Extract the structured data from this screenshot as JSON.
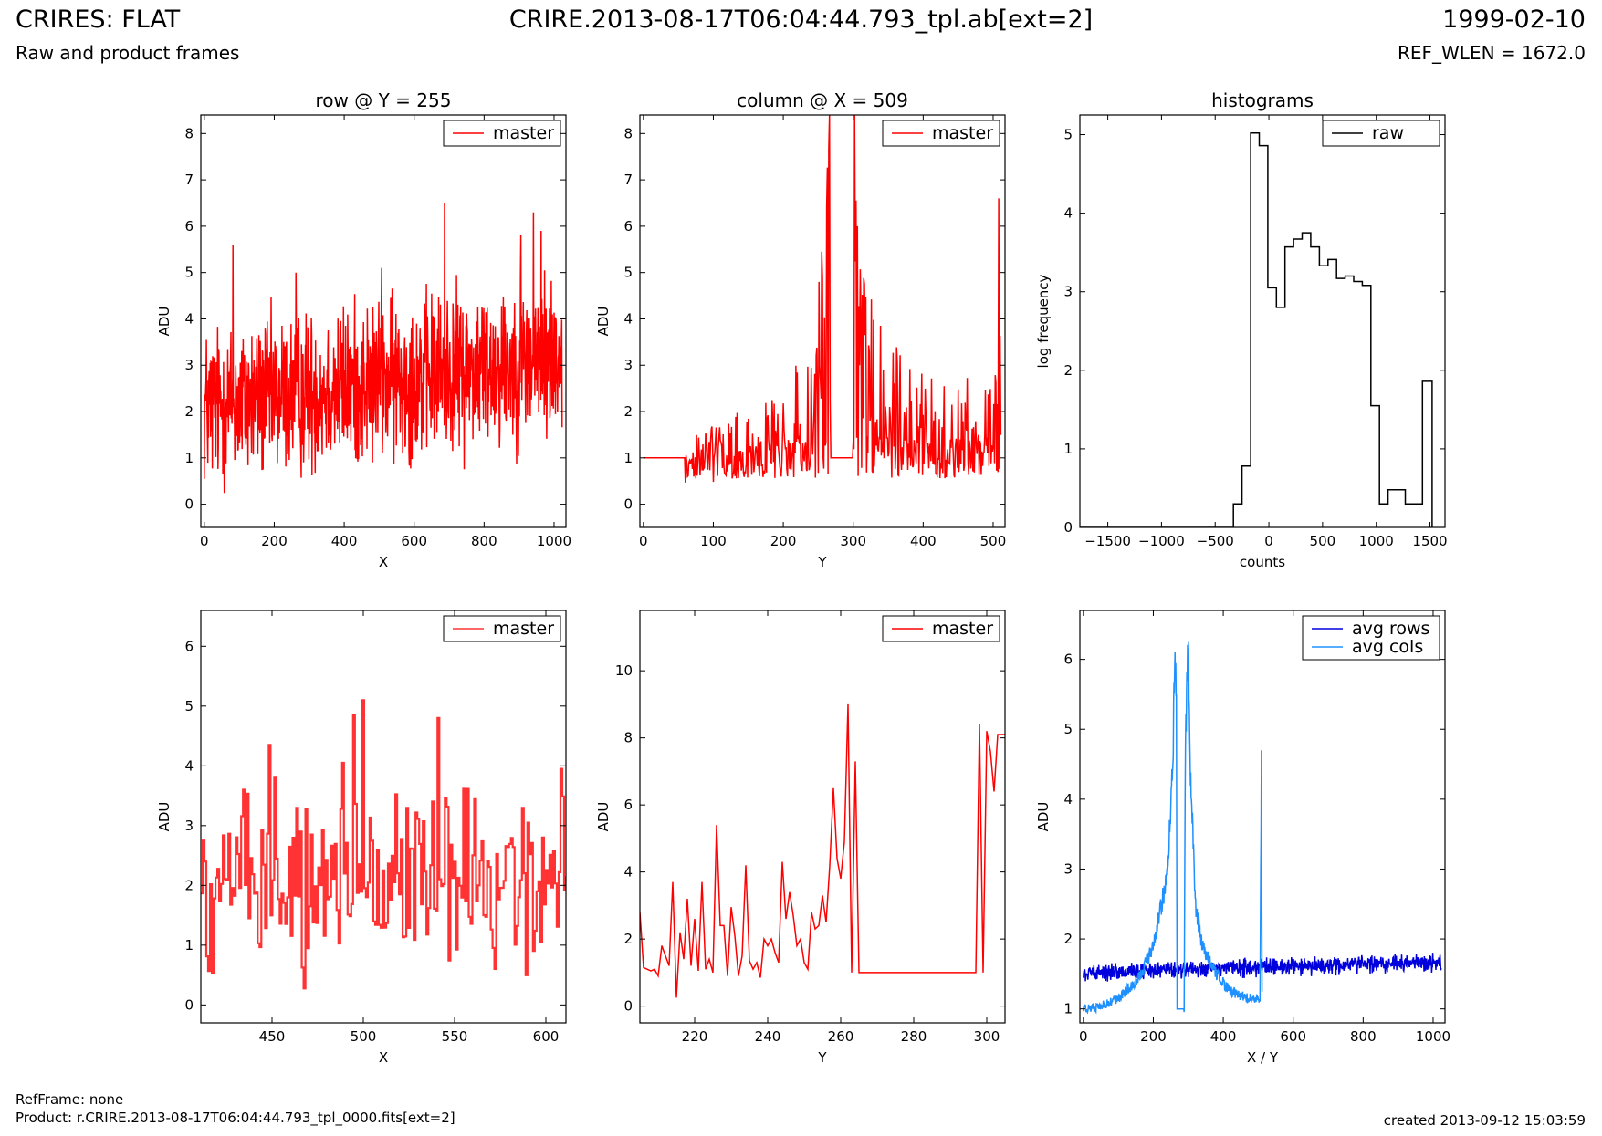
{
  "header": {
    "title": "CRIRES: FLAT",
    "subtitle": "Raw and product frames",
    "file": "CRIRE.2013-08-17T06:04:44.793_tpl.ab[ext=2]",
    "date": "1999-02-10",
    "ref_wlen": "REF_WLEN = 1672.0"
  },
  "footer": {
    "ref_frame": "RefFrame: none",
    "product": "Product: r.CRIRE.2013-08-17T06:04:44.793_tpl_0000.fits[ext=2]",
    "created": "created 2013-09-12 15:03:59"
  },
  "colors": {
    "master": "#ff0000",
    "master_zoom": "#ff3333",
    "raw": "#000000",
    "avg_rows": "#0000dd",
    "avg_cols": "#1e90ff"
  },
  "chart_data": [
    {
      "type": "line",
      "title": "row @ Y = 255",
      "xlabel": "X",
      "ylabel": "ADU",
      "xlim": [
        -10,
        1034
      ],
      "ylim": [
        -0.5,
        8.4
      ],
      "xticks": [
        0,
        200,
        400,
        600,
        800,
        1000
      ],
      "yticks": [
        0,
        1,
        2,
        3,
        4,
        5,
        6,
        7,
        8
      ],
      "legend": "top-right",
      "series": [
        {
          "name": "master",
          "color": "#ff0000",
          "style": "noise",
          "x_range": [
            0,
            1023
          ],
          "n": 1024,
          "baseline": [
            2.1,
            3.2
          ],
          "amplitude": 1.3,
          "min": 0.1,
          "max": 6.5,
          "peaks": [
            [
              82,
              5.6
            ],
            [
              687,
              6.5
            ],
            [
              941,
              6.3
            ],
            [
              905,
              5.8
            ],
            [
              963,
              5.9
            ],
            [
              262,
              5.0
            ],
            [
              507,
              5.1
            ]
          ]
        }
      ]
    },
    {
      "type": "line",
      "title": "column @ X = 509",
      "xlabel": "Y",
      "ylabel": "ADU",
      "xlim": [
        -5,
        517
      ],
      "ylim": [
        -0.5,
        8.4
      ],
      "xticks": [
        0,
        100,
        200,
        300,
        400,
        500
      ],
      "yticks": [
        0,
        1,
        2,
        3,
        4,
        5,
        6,
        7,
        8
      ],
      "legend": "top-right",
      "series": [
        {
          "name": "master",
          "color": "#ff0000",
          "style": "column",
          "x_range": [
            0,
            511
          ],
          "n": 512,
          "points": [
            [
              0,
              1.0
            ],
            [
              60,
              1.0
            ],
            [
              140,
              1.3
            ],
            [
              200,
              1.6
            ],
            [
              240,
              2.3
            ],
            [
              255,
              3.5
            ],
            [
              262,
              6.4
            ],
            [
              266,
              8.4
            ],
            [
              268,
              1.0
            ],
            [
              300,
              1.0
            ],
            [
              302,
              8.4
            ],
            [
              306,
              6.0
            ],
            [
              315,
              3.5
            ],
            [
              340,
              2.4
            ],
            [
              400,
              1.8
            ],
            [
              450,
              1.7
            ],
            [
              505,
              1.8
            ],
            [
              508,
              6.6
            ],
            [
              511,
              2.0
            ]
          ]
        }
      ]
    },
    {
      "type": "line",
      "title": "histograms",
      "xlabel": "counts",
      "ylabel": "log frequency",
      "xlim": [
        -1760,
        1640
      ],
      "ylim": [
        0,
        5.25
      ],
      "xticks": [
        -1500,
        -1000,
        -500,
        0,
        500,
        1000,
        1500
      ],
      "yticks": [
        0,
        1,
        2,
        3,
        4,
        5
      ],
      "legend": "top-right",
      "series": [
        {
          "name": "raw",
          "color": "#000000",
          "style": "step",
          "points": [
            [
              -1760,
              0
            ],
            [
              -330,
              0
            ],
            [
              -330,
              0.3
            ],
            [
              -250,
              0.3
            ],
            [
              -250,
              0.78
            ],
            [
              -170,
              0.78
            ],
            [
              -170,
              5.02
            ],
            [
              -90,
              5.02
            ],
            [
              -90,
              4.86
            ],
            [
              -10,
              4.86
            ],
            [
              -10,
              3.05
            ],
            [
              70,
              3.05
            ],
            [
              70,
              2.8
            ],
            [
              150,
              2.8
            ],
            [
              150,
              3.57
            ],
            [
              230,
              3.57
            ],
            [
              230,
              3.67
            ],
            [
              310,
              3.67
            ],
            [
              310,
              3.75
            ],
            [
              390,
              3.75
            ],
            [
              390,
              3.57
            ],
            [
              470,
              3.57
            ],
            [
              470,
              3.33
            ],
            [
              550,
              3.33
            ],
            [
              550,
              3.41
            ],
            [
              630,
              3.41
            ],
            [
              630,
              3.17
            ],
            [
              710,
              3.17
            ],
            [
              710,
              3.2
            ],
            [
              790,
              3.2
            ],
            [
              790,
              3.13
            ],
            [
              870,
              3.13
            ],
            [
              870,
              3.08
            ],
            [
              950,
              3.08
            ],
            [
              950,
              1.55
            ],
            [
              1030,
              1.55
            ],
            [
              1030,
              0.3
            ],
            [
              1110,
              0.3
            ],
            [
              1110,
              0.48
            ],
            [
              1270,
              0.48
            ],
            [
              1270,
              0.3
            ],
            [
              1430,
              0.3
            ],
            [
              1430,
              1.86
            ],
            [
              1520,
              1.86
            ],
            [
              1520,
              0
            ]
          ]
        }
      ]
    },
    {
      "type": "line",
      "xlabel": "X",
      "ylabel": "ADU",
      "xlim": [
        411,
        611
      ],
      "ylim": [
        -0.3,
        6.6
      ],
      "xticks": [
        450,
        500,
        550,
        600
      ],
      "yticks": [
        0,
        1,
        2,
        3,
        4,
        5,
        6
      ],
      "legend": "top-right",
      "series": [
        {
          "name": "master",
          "color": "#ff3333",
          "style": "noise-step",
          "x_range": [
            411,
            611
          ],
          "n": 200,
          "baseline": [
            2.1,
            2.2
          ],
          "amplitude": 1.1,
          "min": 0.2,
          "max": 5.1,
          "peaks": [
            [
              448,
              4.35
            ],
            [
              494,
              4.85
            ],
            [
              499,
              5.1
            ],
            [
              541,
              4.8
            ],
            [
              608,
              3.95
            ],
            [
              434,
              3.6
            ],
            [
              488,
              4.05
            ]
          ]
        }
      ]
    },
    {
      "type": "line",
      "xlabel": "Y",
      "ylabel": "ADU",
      "xlim": [
        205,
        305
      ],
      "ylim": [
        -0.5,
        11.8
      ],
      "xticks": [
        220,
        240,
        260,
        280,
        300
      ],
      "yticks": [
        0,
        2,
        4,
        6,
        8,
        10
      ],
      "legend": "top-right",
      "series": [
        {
          "name": "master",
          "color": "#ff0000",
          "style": "step",
          "points": [
            [
              205,
              2.8
            ],
            [
              206,
              1.15
            ],
            [
              208,
              1.05
            ],
            [
              209,
              1.1
            ],
            [
              210,
              0.9
            ],
            [
              211,
              1.8
            ],
            [
              212,
              1.5
            ],
            [
              213,
              1.2
            ],
            [
              214,
              3.7
            ],
            [
              215,
              0.25
            ],
            [
              216,
              2.2
            ],
            [
              217,
              1.4
            ],
            [
              218,
              3.2
            ],
            [
              219,
              1.2
            ],
            [
              220,
              2.6
            ],
            [
              221,
              1.05
            ],
            [
              222,
              3.7
            ],
            [
              223,
              1.1
            ],
            [
              224,
              1.4
            ],
            [
              225,
              1.0
            ],
            [
              226,
              5.4
            ],
            [
              227,
              2.4
            ],
            [
              228,
              2.4
            ],
            [
              229,
              0.9
            ],
            [
              230,
              2.95
            ],
            [
              231,
              2.1
            ],
            [
              232,
              0.9
            ],
            [
              233,
              1.5
            ],
            [
              234,
              4.2
            ],
            [
              235,
              1.35
            ],
            [
              236,
              1.1
            ],
            [
              237,
              1.3
            ],
            [
              238,
              0.85
            ],
            [
              239,
              2.0
            ],
            [
              240,
              1.8
            ],
            [
              241,
              2.0
            ],
            [
              242,
              1.6
            ],
            [
              243,
              1.3
            ],
            [
              244,
              4.3
            ],
            [
              245,
              2.6
            ],
            [
              246,
              3.4
            ],
            [
              247,
              2.7
            ],
            [
              248,
              1.8
            ],
            [
              249,
              2.0
            ],
            [
              250,
              1.3
            ],
            [
              251,
              1.1
            ],
            [
              252,
              2.8
            ],
            [
              253,
              2.3
            ],
            [
              254,
              2.4
            ],
            [
              255,
              3.3
            ],
            [
              256,
              2.5
            ],
            [
              257,
              4.2
            ],
            [
              258,
              6.5
            ],
            [
              259,
              4.4
            ],
            [
              260,
              3.8
            ],
            [
              261,
              4.9
            ],
            [
              262,
              9.0
            ],
            [
              263,
              1.0
            ],
            [
              264,
              7.3
            ],
            [
              265,
              1.0
            ],
            [
              297,
              1.0
            ],
            [
              298,
              8.4
            ],
            [
              299,
              1.0
            ],
            [
              300,
              8.2
            ],
            [
              301,
              7.6
            ],
            [
              302,
              6.4
            ],
            [
              303,
              8.1
            ],
            [
              305,
              8.1
            ]
          ]
        }
      ]
    },
    {
      "type": "line",
      "xlabel": "X / Y",
      "ylabel": "ADU",
      "xlim": [
        -10,
        1034
      ],
      "ylim": [
        0.8,
        6.7
      ],
      "xticks": [
        0,
        200,
        400,
        600,
        800,
        1000
      ],
      "yticks": [
        1,
        2,
        3,
        4,
        5,
        6
      ],
      "legend": "top-right",
      "series": [
        {
          "name": "avg rows",
          "color": "#0000dd",
          "style": "rows",
          "x_range": [
            0,
            1023
          ],
          "n": 1024,
          "baseline": [
            1.52,
            1.67
          ],
          "amplitude": 0.09,
          "min": 1.35,
          "max": 1.9
        },
        {
          "name": "avg cols",
          "color": "#1e90ff",
          "style": "cols",
          "x_range": [
            0,
            511
          ],
          "n": 512,
          "points": [
            [
              0,
              1.0
            ],
            [
              40,
              1.02
            ],
            [
              100,
              1.15
            ],
            [
              160,
              1.45
            ],
            [
              200,
              1.9
            ],
            [
              240,
              2.9
            ],
            [
              255,
              4.4
            ],
            [
              262,
              6.1
            ],
            [
              266,
              5.5
            ],
            [
              268,
              1.0
            ],
            [
              288,
              1.0
            ],
            [
              292,
              4.8
            ],
            [
              300,
              6.25
            ],
            [
              305,
              4.6
            ],
            [
              320,
              2.5
            ],
            [
              340,
              1.9
            ],
            [
              380,
              1.5
            ],
            [
              420,
              1.25
            ],
            [
              470,
              1.15
            ],
            [
              505,
              1.15
            ],
            [
              509,
              4.7
            ],
            [
              511,
              1.2
            ]
          ]
        }
      ]
    }
  ]
}
